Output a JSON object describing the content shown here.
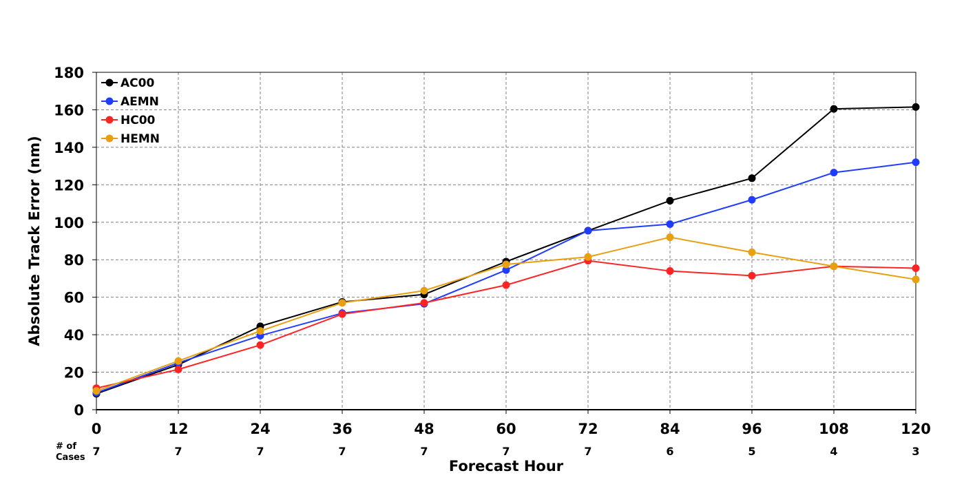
{
  "chart_data": {
    "type": "line",
    "title": "",
    "xlabel": "Forecast Hour",
    "ylabel": "Absolute Track Error (nm)",
    "x": [
      0,
      12,
      24,
      36,
      48,
      60,
      72,
      84,
      96,
      108,
      120
    ],
    "xlim": [
      0,
      120
    ],
    "ylim": [
      0,
      180
    ],
    "yticks": [
      0,
      20,
      40,
      60,
      80,
      100,
      120,
      140,
      160,
      180
    ],
    "grid": true,
    "legend_position": "top-left",
    "cases_label": [
      "# of",
      "Cases"
    ],
    "cases": [
      7,
      7,
      7,
      7,
      7,
      7,
      7,
      6,
      5,
      4,
      3
    ],
    "series": [
      {
        "name": "AC00",
        "color": "#000000",
        "values": [
          8.5,
          24,
          44.5,
          57.5,
          61.5,
          79,
          95.5,
          111.5,
          123.5,
          160.5,
          161.5
        ]
      },
      {
        "name": "AEMN",
        "color": "#1f3cff",
        "values": [
          9,
          25,
          39.5,
          51.5,
          56.5,
          74.5,
          95.5,
          99,
          112,
          126.5,
          132
        ]
      },
      {
        "name": "HC00",
        "color": "#ff2424",
        "values": [
          11.5,
          21.5,
          34.5,
          51,
          57,
          66.5,
          79.5,
          74,
          71.5,
          76.5,
          75.5
        ]
      },
      {
        "name": "HEMN",
        "color": "#e8a010",
        "values": [
          10,
          26,
          42,
          57,
          63.5,
          77.5,
          81.5,
          92,
          84,
          76.5,
          69.5
        ]
      }
    ]
  }
}
